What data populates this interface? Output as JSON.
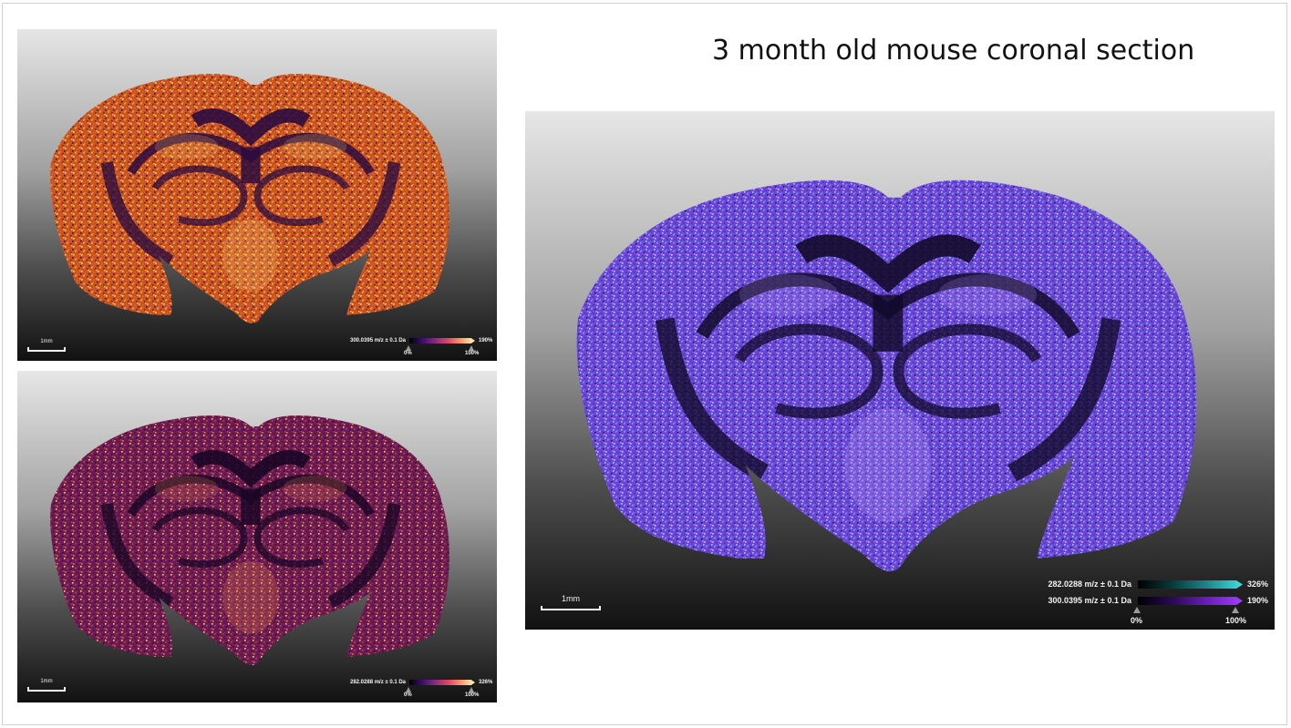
{
  "title": "3 month old mouse coronal section",
  "panels": [
    {
      "id": "top-left",
      "scalebar": "1mm",
      "colormap": "inferno",
      "legend": [
        {
          "mz": "300.0395 m/z ± 0.1 Da",
          "max": "190%",
          "colors": [
            "#000004",
            "#3b0f70",
            "#8c2981",
            "#de4968",
            "#fe9f6d",
            "#fcfdbf"
          ]
        }
      ],
      "ticks": [
        "0%",
        "100%"
      ]
    },
    {
      "id": "bottom-left",
      "scalebar": "1mm",
      "colormap": "inferno",
      "legend": [
        {
          "mz": "282.0288 m/z ± 0.1 Da",
          "max": "326%",
          "colors": [
            "#000004",
            "#3b0f70",
            "#8c2981",
            "#de4968",
            "#fe9f6d",
            "#fcfdbf"
          ]
        }
      ],
      "ticks": [
        "0%",
        "100%"
      ]
    },
    {
      "id": "right",
      "scalebar": "1mm",
      "colormap": "overlay",
      "legend": [
        {
          "mz": "282.0288 m/z ± 0.1 Da",
          "max": "326%",
          "colors": [
            "#000000",
            "#0a3a3a",
            "#1a8a8a",
            "#3fe0e0"
          ]
        },
        {
          "mz": "300.0395 m/z ± 0.1 Da",
          "max": "190%",
          "colors": [
            "#000000",
            "#2a0a55",
            "#6a1ec0",
            "#a43cff"
          ]
        }
      ],
      "ticks": [
        "0%",
        "100%"
      ]
    }
  ]
}
